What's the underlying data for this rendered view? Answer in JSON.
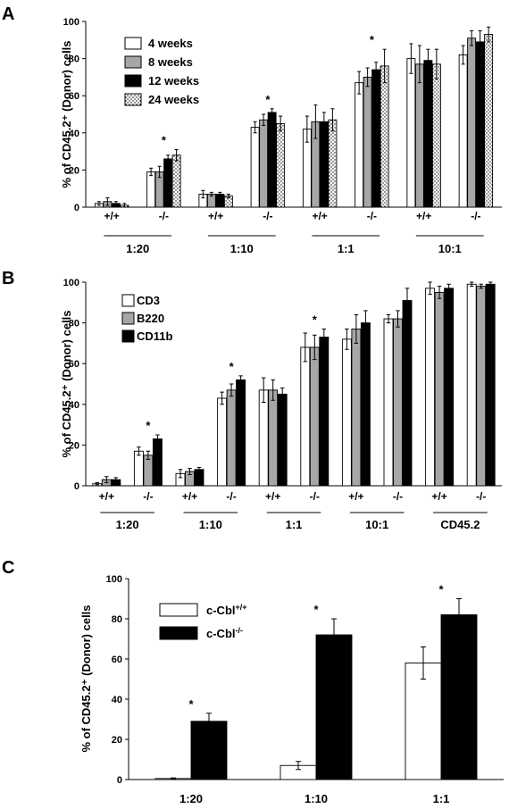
{
  "chart_data": [
    {
      "type": "bar",
      "panel": "A",
      "ylabel": "% of CD45.2⁺ (Donor) cells",
      "ylim": [
        0,
        100
      ],
      "yticks": [
        0,
        20,
        40,
        60,
        80,
        100
      ],
      "categories": [
        "+/+",
        "-/-",
        "+/+",
        "-/-",
        "+/+",
        "-/-",
        "+/+",
        "-/-"
      ],
      "groups": [
        "1:20",
        "1:10",
        "1:1",
        "10:1"
      ],
      "series": [
        {
          "name": "4 weeks",
          "color": "#ffffff",
          "pattern": "solid",
          "values": [
            2,
            19,
            7,
            43,
            42,
            67,
            80,
            82
          ],
          "errors": [
            1,
            2,
            2,
            3,
            7,
            6,
            8,
            5
          ]
        },
        {
          "name": "8 weeks",
          "color": "#a6a6a6",
          "pattern": "solid",
          "values": [
            3,
            19,
            7,
            47,
            46,
            70,
            77,
            91
          ],
          "errors": [
            2,
            3,
            1,
            3,
            9,
            5,
            10,
            4
          ]
        },
        {
          "name": "12 weeks",
          "color": "#000000",
          "pattern": "solid",
          "values": [
            2,
            26,
            7,
            51,
            46,
            74,
            79,
            89
          ],
          "errors": [
            1,
            2,
            1,
            2,
            5,
            4,
            6,
            6
          ]
        },
        {
          "name": "24 weeks",
          "color": "#ffffff",
          "pattern": "dots",
          "values": [
            1,
            28,
            6,
            45,
            47,
            76,
            77,
            93
          ],
          "errors": [
            1,
            3,
            1,
            4,
            6,
            9,
            8,
            4
          ]
        }
      ],
      "stars": [
        1,
        3,
        5
      ]
    },
    {
      "type": "bar",
      "panel": "B",
      "ylabel": "% of CD45.2⁺ (Donor) cells",
      "ylim": [
        0,
        100
      ],
      "yticks": [
        0,
        20,
        40,
        60,
        80,
        100
      ],
      "categories": [
        "+/+",
        "-/-",
        "+/+",
        "-/-",
        "+/+",
        "-/-",
        "+/+",
        "-/-",
        "+/+",
        "-/-"
      ],
      "groups": [
        "1:20",
        "1:10",
        "1:1",
        "10:1",
        "CD45.2"
      ],
      "series": [
        {
          "name": "CD3",
          "color": "#ffffff",
          "values": [
            1,
            17,
            6,
            43,
            47,
            68,
            72,
            82,
            97,
            99
          ],
          "errors": [
            0.5,
            2,
            2,
            3,
            6,
            7,
            5,
            2,
            3,
            1
          ]
        },
        {
          "name": "B220",
          "color": "#a6a6a6",
          "values": [
            3,
            15,
            7,
            47,
            47,
            68,
            77,
            82,
            95,
            98
          ],
          "errors": [
            1.5,
            2,
            1.5,
            3,
            5,
            6,
            7,
            4,
            3,
            1
          ]
        },
        {
          "name": "CD11b",
          "color": "#000000",
          "values": [
            3,
            23,
            8,
            52,
            45,
            73,
            80,
            91,
            97,
            99
          ],
          "errors": [
            1,
            2,
            1,
            2,
            3,
            4,
            6,
            6,
            2,
            1
          ]
        }
      ],
      "stars": [
        1,
        3,
        5
      ]
    },
    {
      "type": "bar",
      "panel": "C",
      "ylabel": "% of CD45.2⁺ (Donor) cells",
      "ylim": [
        0,
        100
      ],
      "yticks": [
        0,
        20,
        40,
        60,
        80,
        100
      ],
      "categories": [
        "1:20",
        "1:10",
        "1:1"
      ],
      "series": [
        {
          "name": "c-Cbl+/+",
          "label_main": "c-Cbl",
          "label_sup": "+/+",
          "color": "#ffffff",
          "values": [
            0.5,
            7,
            58
          ],
          "errors": [
            0.3,
            2,
            8
          ]
        },
        {
          "name": "c-Cbl-/-",
          "label_main": "c-Cbl",
          "label_sup": "-/-",
          "color": "#000000",
          "values": [
            29,
            72,
            82
          ],
          "errors": [
            4,
            8,
            8
          ]
        }
      ],
      "stars": [
        0,
        1,
        2
      ]
    }
  ]
}
